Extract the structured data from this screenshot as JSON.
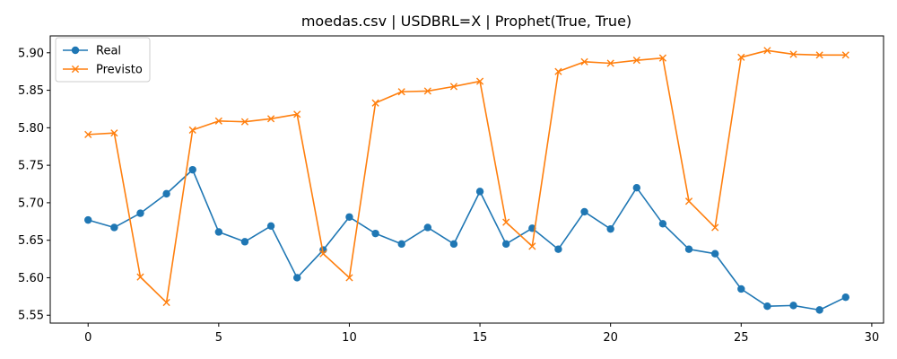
{
  "chart_data": {
    "type": "line",
    "title": "moedas.csv | USDBRL=X | Prophet(True, True)",
    "xlabel": "",
    "ylabel": "",
    "xlim": [
      -1.45,
      30.45
    ],
    "ylim": [
      5.5395,
      5.9225
    ],
    "xticks": [
      0,
      5,
      10,
      15,
      20,
      25,
      30
    ],
    "yticks": [
      5.55,
      5.6,
      5.65,
      5.7,
      5.75,
      5.8,
      5.85,
      5.9
    ],
    "ytick_labels": [
      "5.55",
      "5.60",
      "5.65",
      "5.70",
      "5.75",
      "5.80",
      "5.85",
      "5.90"
    ],
    "grid": false,
    "legend_position": "upper-left",
    "x": [
      0,
      1,
      2,
      3,
      4,
      5,
      6,
      7,
      8,
      9,
      10,
      11,
      12,
      13,
      14,
      15,
      16,
      17,
      18,
      19,
      20,
      21,
      22,
      23,
      24,
      25,
      26,
      27,
      28,
      29
    ],
    "series": [
      {
        "name": "Real",
        "color": "#1f77b4",
        "marker": "circle",
        "values": [
          5.677,
          5.667,
          5.686,
          5.712,
          5.744,
          5.661,
          5.648,
          5.669,
          5.6,
          5.637,
          5.681,
          5.659,
          5.645,
          5.667,
          5.645,
          5.715,
          5.645,
          5.666,
          5.638,
          5.688,
          5.665,
          5.72,
          5.672,
          5.638,
          5.632,
          5.585,
          5.562,
          5.563,
          5.557,
          5.574
        ]
      },
      {
        "name": "Previsto",
        "color": "#ff7f0e",
        "marker": "x",
        "values": [
          5.791,
          5.793,
          5.601,
          5.567,
          5.797,
          5.809,
          5.808,
          5.812,
          5.818,
          5.632,
          5.6,
          5.833,
          5.848,
          5.849,
          5.855,
          5.862,
          5.674,
          5.642,
          5.875,
          5.888,
          5.886,
          5.89,
          5.893,
          5.702,
          5.667,
          5.894,
          5.903,
          5.898,
          5.897,
          5.897
        ]
      }
    ]
  }
}
